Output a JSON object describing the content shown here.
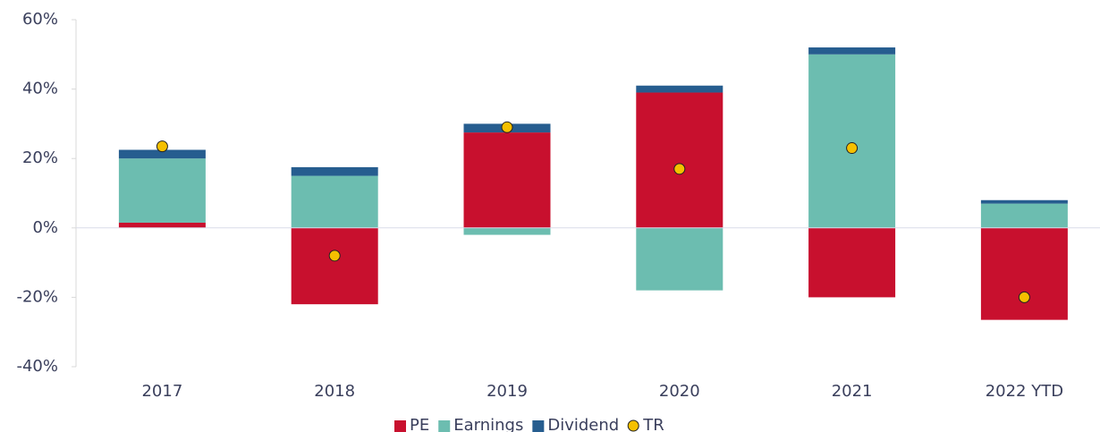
{
  "chart_data": {
    "type": "bar",
    "stacked": true,
    "categories": [
      "2017",
      "2018",
      "2019",
      "2020",
      "2021",
      "2022 YTD"
    ],
    "series": [
      {
        "name": "PE",
        "color": "#c8102e",
        "values": [
          1.5,
          -22,
          27.5,
          39,
          -20,
          -26.5
        ]
      },
      {
        "name": "Earnings",
        "color": "#6cbdb0",
        "values": [
          18.5,
          15,
          -2,
          -18,
          50,
          7
        ]
      },
      {
        "name": "Dividend",
        "color": "#265d8f",
        "values": [
          2.5,
          2.5,
          2.5,
          2,
          2,
          1
        ]
      },
      {
        "name": "TR",
        "type": "scatter",
        "color": "#f5c000",
        "values": [
          23.5,
          -8,
          29,
          17,
          23,
          -20
        ]
      }
    ],
    "ylim": [
      -40,
      60
    ],
    "yticks": [
      {
        "value": -40,
        "label": "-40%"
      },
      {
        "value": -20,
        "label": "-20%"
      },
      {
        "value": 0,
        "label": "0%"
      },
      {
        "value": 20,
        "label": "20%"
      },
      {
        "value": 40,
        "label": "40%"
      },
      {
        "value": 60,
        "label": "60%"
      }
    ],
    "legend": "bottom"
  }
}
